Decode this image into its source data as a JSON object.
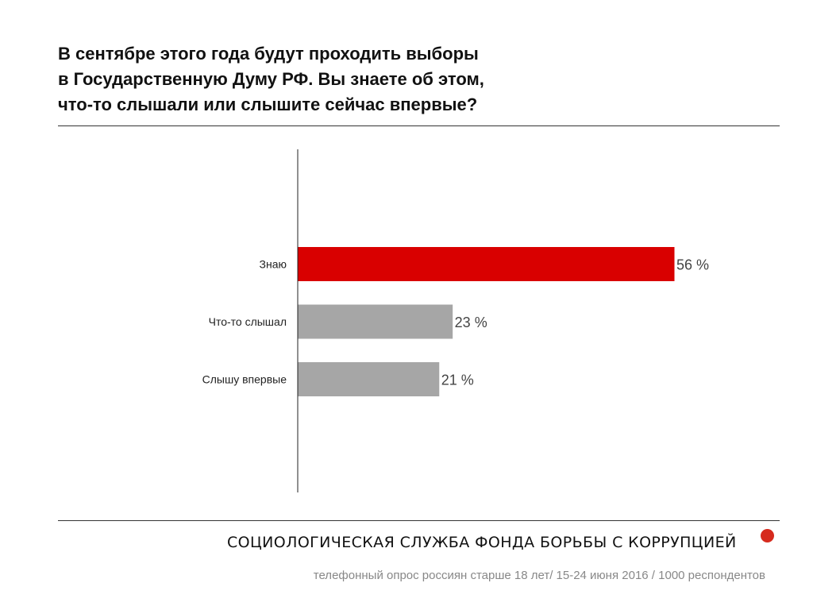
{
  "header": {
    "title_lines": [
      "В сентябре этого года будут проходить выборы",
      "в Государственную Думу РФ. Вы знаете об этом,",
      "что-то слышали или слышите сейчас впервые?"
    ]
  },
  "chart_data": {
    "type": "bar",
    "orientation": "horizontal",
    "title": "В сентябре этого года будут проходить выборы в Государственную Думу РФ. Вы знаете об этом, что-то слышали или слышите сейчас впервые?",
    "categories": [
      "Знаю",
      "Что-то слышал",
      "Слышу впервые"
    ],
    "values": [
      56,
      23,
      21
    ],
    "value_labels": [
      "56 %",
      "23 %",
      "21 %"
    ],
    "unit": "%",
    "xlim": [
      0,
      70
    ],
    "grid": false,
    "bar_colors": [
      "#d90000",
      "#a6a6a6",
      "#a6a6a6"
    ]
  },
  "footer": {
    "organization": "СОЦИОЛОГИЧЕСКАЯ СЛУЖБА ФОНДА БОРЬБЫ С КОРРУПЦИЕЙ",
    "note": "телефонный опрос россиян старше 18 лет/ 15-24 июня 2016 / 1000 респондентов",
    "dot_color": "#d62b1e"
  }
}
